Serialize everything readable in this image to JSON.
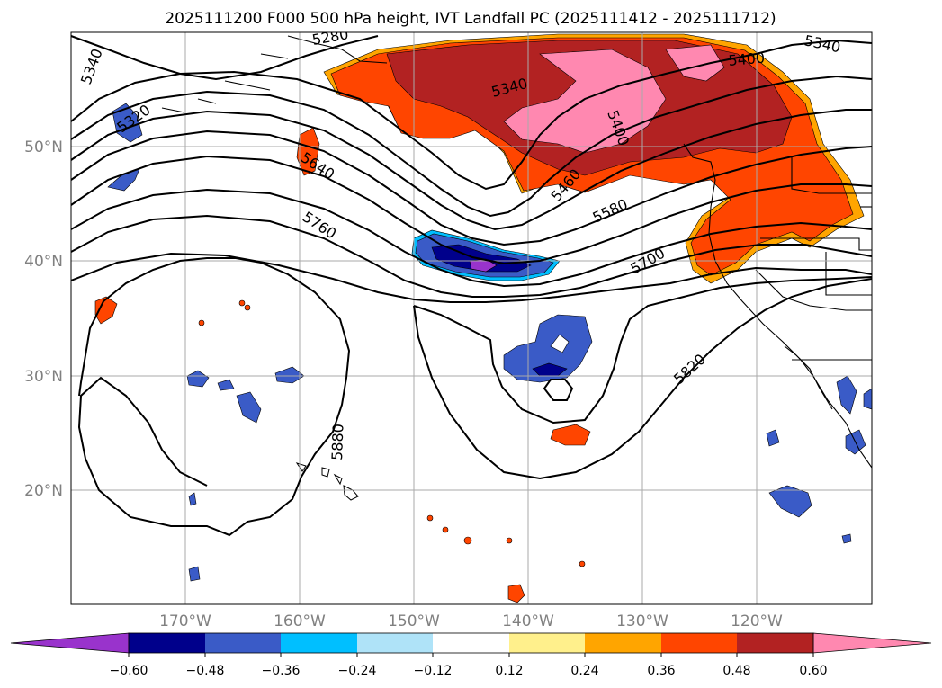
{
  "title": "2025111200 F000 500 hPa height, IVT Landfall PC (2025111412 - 2025111712)",
  "map": {
    "lat_labels": [
      "50°N",
      "40°N",
      "30°N",
      "20°N"
    ],
    "lon_labels": [
      "170°W",
      "160°W",
      "150°W",
      "140°W",
      "130°W",
      "120°W"
    ],
    "contour_labels": [
      "5340",
      "5340",
      "5400",
      "5280",
      "5320",
      "5340",
      "5640",
      "5760",
      "5460",
      "5580",
      "5700",
      "5820",
      "5880",
      "5400"
    ]
  },
  "colorbar": {
    "ticks": [
      "−0.60",
      "−0.48",
      "−0.36",
      "−0.24",
      "−0.12",
      "0.12",
      "0.24",
      "0.36",
      "0.48",
      "0.60"
    ],
    "colors": [
      "#9933cc",
      "#00008b",
      "#3a5bc7",
      "#00bfff",
      "#afe3f8",
      "#ffffff",
      "#fff08c",
      "#ffa500",
      "#ff4500",
      "#b22222",
      "#ff88b0"
    ]
  }
}
